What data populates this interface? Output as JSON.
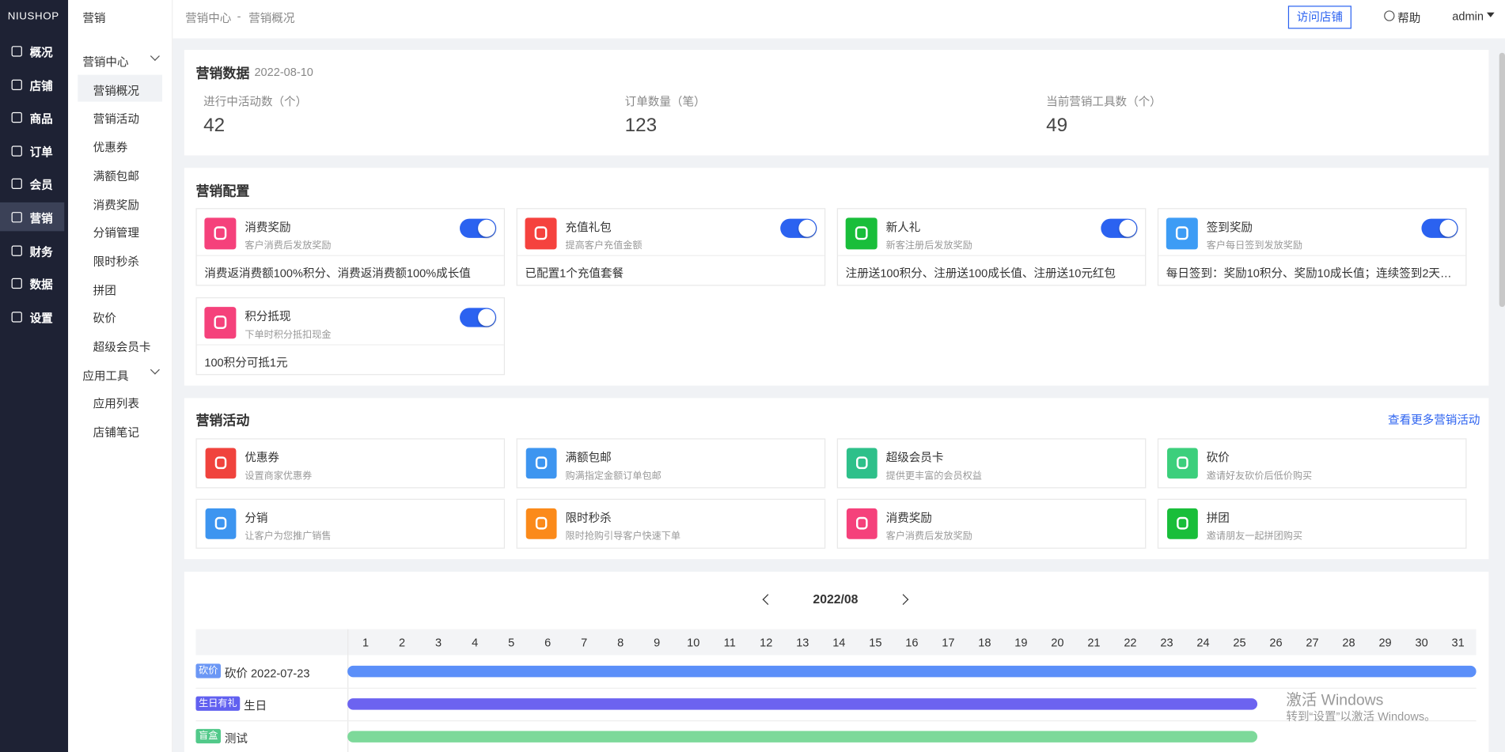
{
  "sidebar": {
    "logo": "NIUSHOP",
    "menu": [
      "概况",
      "店铺",
      "商品",
      "订单",
      "会员",
      "营销",
      "财务",
      "数据",
      "设置"
    ],
    "active": 5
  },
  "submenu": {
    "title": "营销",
    "groups": [
      {
        "title": "营销中心",
        "items": [
          "营销概况",
          "营销活动",
          "优惠券",
          "满额包邮",
          "消费奖励",
          "分销管理",
          "限时秒杀",
          "拼团",
          "砍价",
          "超级会员卡"
        ]
      },
      {
        "title": "应用工具",
        "items": [
          "应用列表",
          "店铺笔记"
        ]
      }
    ],
    "active": [
      0,
      0
    ]
  },
  "header": {
    "breadcrumb": [
      "营销中心",
      "营销概况"
    ],
    "separator": "-",
    "visit_button": "访问店铺",
    "help": "帮助",
    "user": "admin"
  },
  "stats": {
    "title": "营销数据",
    "date": "2022-08-10",
    "items": [
      {
        "label": "进行中活动数（个）",
        "value": 42
      },
      {
        "label": "订单数量（笔）",
        "value": 123
      },
      {
        "label": "当前营销工具数（个）",
        "value": 49
      }
    ]
  },
  "config": {
    "title": "营销配置",
    "cards": [
      {
        "name": "消费奖励",
        "desc": "客户消费后发放奖励",
        "detail": "消费返消费额100%积分、消费返消费额100%成长值",
        "enabled": true,
        "color": "#f5417b"
      },
      {
        "name": "充值礼包",
        "desc": "提高客户充值金额",
        "detail": "已配置1个充值套餐",
        "enabled": true,
        "color": "#f5423e"
      },
      {
        "name": "新人礼",
        "desc": "新客注册后发放奖励",
        "detail": "注册送100积分、注册送100成长值、注册送10元红包",
        "enabled": true,
        "color": "#19be3a"
      },
      {
        "name": "签到奖励",
        "desc": "客户每日签到发放奖励",
        "detail": "每日签到：奖励10积分、奖励10成长值；连续签到2天：...",
        "enabled": true,
        "color": "#3d9cf5"
      },
      {
        "name": "积分抵现",
        "desc": "下单时积分抵扣现金",
        "detail": "100积分可抵1元",
        "enabled": true,
        "color": "#f5417b"
      }
    ]
  },
  "activities": {
    "title": "营销活动",
    "more": "查看更多营销活动",
    "items": [
      {
        "name": "优惠券",
        "desc": "设置商家优惠券",
        "color": "#f0433d"
      },
      {
        "name": "满额包邮",
        "desc": "购满指定金额订单包邮",
        "color": "#3d95f0"
      },
      {
        "name": "超级会员卡",
        "desc": "提供更丰富的会员权益",
        "color": "#2ec08a"
      },
      {
        "name": "砍价",
        "desc": "邀请好友砍价后低价购买",
        "color": "#3ccf7c"
      },
      {
        "name": "分销",
        "desc": "让客户为您推广销售",
        "color": "#3d95f0"
      },
      {
        "name": "限时秒杀",
        "desc": "限时抢购引导客户快速下单",
        "color": "#fb8a1a"
      },
      {
        "name": "消费奖励",
        "desc": "客户消费后发放奖励",
        "color": "#f5417b"
      },
      {
        "name": "拼团",
        "desc": "邀请朋友一起拼团购买",
        "color": "#19be3a"
      }
    ]
  },
  "calendar": {
    "month": "2022/08",
    "days": [
      1,
      2,
      3,
      4,
      5,
      6,
      7,
      8,
      9,
      10,
      11,
      12,
      13,
      14,
      15,
      16,
      17,
      18,
      19,
      20,
      21,
      22,
      23,
      24,
      25,
      26,
      27,
      28,
      29,
      30,
      31
    ],
    "rows": [
      {
        "tag": "砍价",
        "tag_color": "#6b97f5",
        "name": "砍价 2022-07-23",
        "bar_color": "#5b8ff9",
        "start_day": 1,
        "end_day": 31
      },
      {
        "tag": "生日有礼",
        "tag_color": "#6160f0",
        "name": "生日",
        "bar_color": "#6c63f0",
        "start_day": 1,
        "end_day": 25
      },
      {
        "tag": "盲盒",
        "tag_color": "#52c98a",
        "name": "测试",
        "bar_color": "#7dd99a",
        "start_day": 1,
        "end_day": 25
      }
    ]
  },
  "watermark": {
    "title": "激活 Windows",
    "text": "转到“设置”以激活 Windows。"
  }
}
